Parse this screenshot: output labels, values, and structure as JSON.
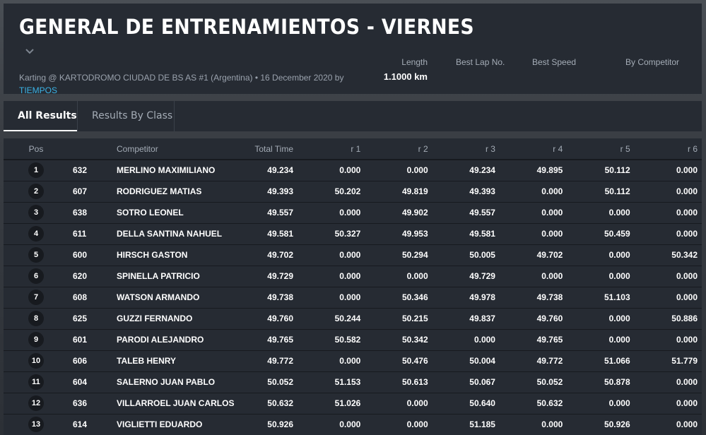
{
  "header": {
    "title": "GENERAL DE ENTRENAMIENTOS - VIERNES",
    "subtitle": "Karting @ KARTODROMO CIUDAD DE BS AS #1 (Argentina) • 16 December 2020 by",
    "organizer_link": "TIEMPOS",
    "stats": {
      "length_label": "Length",
      "length_value": "1.1000 km",
      "best_lap_label": "Best Lap No.",
      "best_speed_label": "Best Speed",
      "by_competitor_label": "By Competitor"
    }
  },
  "tabs": [
    {
      "label": "All Results",
      "active": true
    },
    {
      "label": "Results By Class",
      "active": false
    }
  ],
  "table": {
    "headers": [
      "Pos",
      "",
      "Competitor",
      "Total Time",
      "r 1",
      "r 2",
      "r 3",
      "r 4",
      "r 5",
      "r 6"
    ],
    "rows": [
      {
        "pos": "1",
        "num": "632",
        "name": "MERLINO MAXIMILIANO",
        "total": "49.234",
        "r": [
          "0.000",
          "0.000",
          "49.234",
          "49.895",
          "50.112",
          "0.000"
        ]
      },
      {
        "pos": "2",
        "num": "607",
        "name": "RODRIGUEZ MATIAS",
        "total": "49.393",
        "r": [
          "50.202",
          "49.819",
          "49.393",
          "0.000",
          "50.112",
          "0.000"
        ]
      },
      {
        "pos": "3",
        "num": "638",
        "name": "SOTRO LEONEL",
        "total": "49.557",
        "r": [
          "0.000",
          "49.902",
          "49.557",
          "0.000",
          "0.000",
          "0.000"
        ]
      },
      {
        "pos": "4",
        "num": "611",
        "name": "DELLA SANTINA NAHUEL",
        "total": "49.581",
        "r": [
          "50.327",
          "49.953",
          "49.581",
          "0.000",
          "50.459",
          "0.000"
        ]
      },
      {
        "pos": "5",
        "num": "600",
        "name": "HIRSCH GASTON",
        "total": "49.702",
        "r": [
          "0.000",
          "50.294",
          "50.005",
          "49.702",
          "0.000",
          "50.342"
        ]
      },
      {
        "pos": "6",
        "num": "620",
        "name": "SPINELLA PATRICIO",
        "total": "49.729",
        "r": [
          "0.000",
          "0.000",
          "49.729",
          "0.000",
          "0.000",
          "0.000"
        ]
      },
      {
        "pos": "7",
        "num": "608",
        "name": "WATSON ARMANDO",
        "total": "49.738",
        "r": [
          "0.000",
          "50.346",
          "49.978",
          "49.738",
          "51.103",
          "0.000"
        ]
      },
      {
        "pos": "8",
        "num": "625",
        "name": "GUZZI FERNANDO",
        "total": "49.760",
        "r": [
          "50.244",
          "50.215",
          "49.837",
          "49.760",
          "0.000",
          "50.886"
        ]
      },
      {
        "pos": "9",
        "num": "601",
        "name": "PARODI ALEJANDRO",
        "total": "49.765",
        "r": [
          "50.582",
          "50.342",
          "0.000",
          "49.765",
          "0.000",
          "0.000"
        ]
      },
      {
        "pos": "10",
        "num": "606",
        "name": "TALEB HENRY",
        "total": "49.772",
        "r": [
          "0.000",
          "50.476",
          "50.004",
          "49.772",
          "51.066",
          "51.779"
        ]
      },
      {
        "pos": "11",
        "num": "604",
        "name": "SALERNO JUAN PABLO",
        "total": "50.052",
        "r": [
          "51.153",
          "50.613",
          "50.067",
          "50.052",
          "50.878",
          "0.000"
        ]
      },
      {
        "pos": "12",
        "num": "636",
        "name": "VILLARROEL JUAN CARLOS",
        "total": "50.632",
        "r": [
          "51.026",
          "0.000",
          "50.640",
          "50.632",
          "0.000",
          "0.000"
        ]
      },
      {
        "pos": "13",
        "num": "614",
        "name": "VIGLIETTI EDUARDO",
        "total": "50.926",
        "r": [
          "0.000",
          "0.000",
          "51.185",
          "0.000",
          "50.926",
          "0.000"
        ]
      }
    ]
  }
}
